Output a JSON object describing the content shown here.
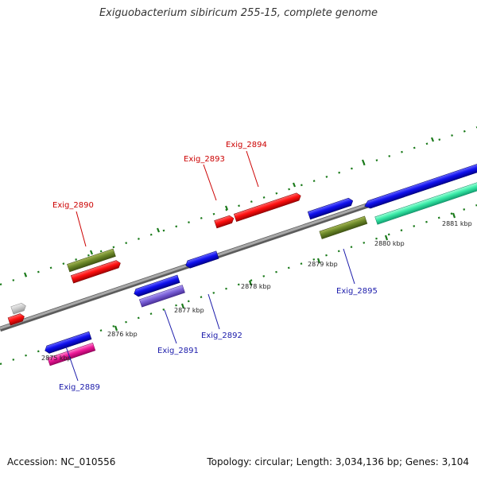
{
  "title": "Exiguobacterium sibiricum 255-15, complete genome",
  "footer": {
    "accession": "Accession: NC_010556",
    "summary": "Topology: circular; Length: 3,034,136 bp; Genes: 3,104"
  },
  "ticks": [
    "2875 kbp",
    "2876 kbp",
    "2877 kbp",
    "2878 kbp",
    "2879 kbp",
    "2880 kbp",
    "2881 kbp"
  ],
  "gene_labels": {
    "g2889": "Exig_2889",
    "g2890": "Exig_2890",
    "g2891": "Exig_2891",
    "g2892": "Exig_2892",
    "g2893": "Exig_2893",
    "g2894": "Exig_2894",
    "g2895": "Exig_2895"
  },
  "colors": {
    "forward_label": "#cc0000",
    "reverse_label": "#1a1aaa",
    "backbone": "#8a8a8a",
    "dotted_track": "#1a7a1a"
  }
}
